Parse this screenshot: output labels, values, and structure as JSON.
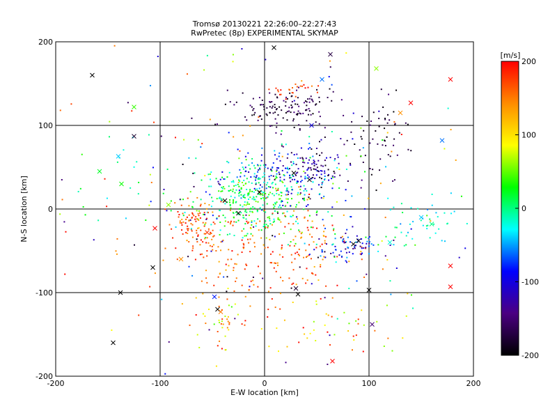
{
  "chart_data": {
    "type": "scatter",
    "title": "Tromsø 20130221 22:26:00–22:27:43",
    "subtitle": "RwPretec (8p) EXPERIMENTAL SKYMAP",
    "xlabel": "E-W location [km]",
    "ylabel": "N-S location [km]",
    "xlim": [
      -200,
      200
    ],
    "ylim": [
      -200,
      200
    ],
    "x_ticks": [
      -200,
      -100,
      0,
      100,
      200
    ],
    "y_ticks": [
      -200,
      -100,
      0,
      100,
      200
    ],
    "grid_lines": [
      -100,
      0,
      100
    ],
    "colorbar": {
      "label": "[m/s]",
      "range": [
        -200,
        200
      ],
      "ticks": [
        200,
        100,
        0,
        -100,
        -200
      ],
      "colors": [
        "#000000",
        "#4b0082",
        "#0000ff",
        "#00ffff",
        "#00ff00",
        "#ffff00",
        "#ff8c00",
        "#ff0000"
      ]
    },
    "clusters": [
      {
        "cx": 20,
        "cy": 120,
        "sx": 25,
        "sy": 12,
        "n": 130,
        "vmin": -200,
        "vmax": -140
      },
      {
        "cx": 30,
        "cy": 145,
        "sx": 10,
        "sy": 5,
        "n": 25,
        "vmin": 130,
        "vmax": 200
      },
      {
        "cx": 45,
        "cy": 50,
        "sx": 18,
        "sy": 15,
        "n": 110,
        "vmin": -200,
        "vmax": -80
      },
      {
        "cx": 110,
        "cy": 80,
        "sx": 15,
        "sy": 25,
        "n": 60,
        "vmin": -200,
        "vmax": -150
      },
      {
        "cx": -10,
        "cy": 10,
        "sx": 30,
        "sy": 20,
        "n": 320,
        "vmin": -30,
        "vmax": 60
      },
      {
        "cx": 10,
        "cy": 35,
        "sx": 30,
        "sy": 20,
        "n": 150,
        "vmin": -120,
        "vmax": 0
      },
      {
        "cx": -65,
        "cy": -20,
        "sx": 10,
        "sy": 15,
        "n": 90,
        "vmin": 130,
        "vmax": 200
      },
      {
        "cx": 5,
        "cy": -50,
        "sx": 45,
        "sy": 30,
        "n": 220,
        "vmin": 120,
        "vmax": 200
      },
      {
        "cx": 80,
        "cy": -45,
        "sx": 18,
        "sy": 8,
        "n": 70,
        "vmin": -150,
        "vmax": -40
      },
      {
        "cx": 150,
        "cy": -20,
        "sx": 25,
        "sy": 15,
        "n": 45,
        "vmin": -60,
        "vmax": 20
      },
      {
        "cx": -40,
        "cy": -130,
        "sx": 12,
        "sy": 15,
        "n": 40,
        "vmin": 40,
        "vmax": 200
      },
      {
        "cx": 60,
        "cy": -140,
        "sx": 40,
        "sy": 20,
        "n": 50,
        "vmin": 50,
        "vmax": 200
      },
      {
        "cx": -150,
        "cy": 40,
        "sx": 20,
        "sy": 30,
        "n": 12,
        "vmin": -40,
        "vmax": 40
      },
      {
        "cx": 0,
        "cy": 0,
        "sx": 110,
        "sy": 100,
        "n": 260,
        "vmin": -200,
        "vmax": 200
      }
    ],
    "markers_x": [
      {
        "x": -165,
        "y": 160,
        "v": -200
      },
      {
        "x": -125,
        "y": 87,
        "v": -180
      },
      {
        "x": -140,
        "y": 63,
        "v": -40
      },
      {
        "x": -158,
        "y": 45,
        "v": 20
      },
      {
        "x": -137,
        "y": 30,
        "v": 30
      },
      {
        "x": -105,
        "y": -23,
        "v": 200
      },
      {
        "x": -107,
        "y": -70,
        "v": -200
      },
      {
        "x": -138,
        "y": -100,
        "v": -200
      },
      {
        "x": -145,
        "y": -160,
        "v": -200
      },
      {
        "x": -45,
        "y": -120,
        "v": -200
      },
      {
        "x": 63,
        "y": 185,
        "v": -170
      },
      {
        "x": 107,
        "y": 168,
        "v": 60
      },
      {
        "x": 178,
        "y": 155,
        "v": 200
      },
      {
        "x": 140,
        "y": 127,
        "v": 200
      },
      {
        "x": 130,
        "y": 115,
        "v": 140
      },
      {
        "x": 170,
        "y": 82,
        "v": -60
      },
      {
        "x": 178,
        "y": -68,
        "v": 200
      },
      {
        "x": 178,
        "y": -93,
        "v": 200
      },
      {
        "x": 32,
        "y": -102,
        "v": -200
      },
      {
        "x": 100,
        "y": -97,
        "v": -200
      },
      {
        "x": 103,
        "y": -138,
        "v": -150
      },
      {
        "x": 65,
        "y": -182,
        "v": 200
      },
      {
        "x": 9,
        "y": 193,
        "v": -200
      },
      {
        "x": -80,
        "y": -60,
        "v": 140
      },
      {
        "x": -92,
        "y": 5,
        "v": 60
      },
      {
        "x": -125,
        "y": 122,
        "v": 40
      },
      {
        "x": 150,
        "y": -10,
        "v": -40
      },
      {
        "x": 160,
        "y": -18,
        "v": 0
      },
      {
        "x": 120,
        "y": -40,
        "v": -20
      },
      {
        "x": -38,
        "y": 10,
        "v": -200
      },
      {
        "x": -25,
        "y": -5,
        "v": -200
      },
      {
        "x": -5,
        "y": 20,
        "v": -200
      },
      {
        "x": 28,
        "y": 43,
        "v": -200
      },
      {
        "x": 85,
        "y": -42,
        "v": -200
      },
      {
        "x": 90,
        "y": -38,
        "v": -200
      },
      {
        "x": 30,
        "y": -95,
        "v": -180
      },
      {
        "x": -48,
        "y": -105,
        "v": -80
      },
      {
        "x": -42,
        "y": -123,
        "v": 150
      },
      {
        "x": 43,
        "y": 35,
        "v": -200
      },
      {
        "x": 45,
        "y": 100,
        "v": -100
      },
      {
        "x": 55,
        "y": 155,
        "v": -60
      },
      {
        "x": -55,
        "y": -28,
        "v": 180
      }
    ]
  }
}
